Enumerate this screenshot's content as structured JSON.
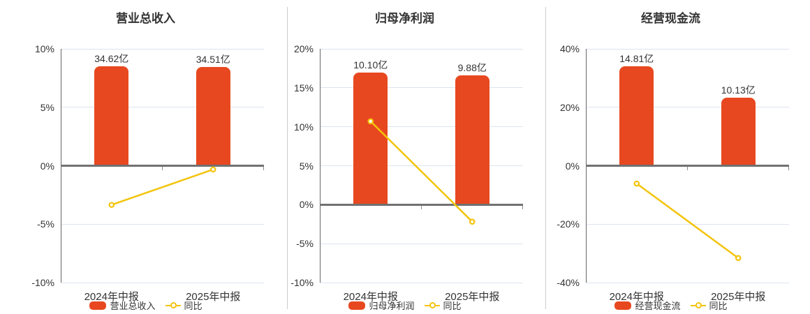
{
  "colors": {
    "bar": "#E8481F",
    "line": "#F3C40C",
    "zero_axis": "#717171",
    "gridline": "#DDE4F0",
    "y_axis": "#666666",
    "divider": "#CCCCCC",
    "text": "#333333"
  },
  "chart_data": [
    {
      "type": "bar",
      "title": "营业总收入",
      "categories": [
        "2024年中报",
        "2025年中报"
      ],
      "series": [
        {
          "name": "营业总收入",
          "type": "bar",
          "unit": "亿",
          "values": [
            34.62,
            34.51
          ],
          "labels": [
            "34.62亿",
            "34.51亿"
          ]
        },
        {
          "name": "同比",
          "type": "line",
          "unit": "%",
          "values": [
            -3.35,
            -0.32
          ]
        }
      ],
      "y_axis": {
        "unit": "%",
        "min": -10,
        "max": 10,
        "ticks": [
          10,
          5,
          0,
          -5,
          -10
        ],
        "tick_labels": [
          "10%",
          "5%",
          "0%",
          "-5%",
          "-10%"
        ]
      },
      "legend": [
        {
          "label": "营业总收入",
          "marker": "bar"
        },
        {
          "label": "同比",
          "marker": "line"
        }
      ],
      "grid": true,
      "legend_position": "bottom"
    },
    {
      "type": "bar",
      "title": "归母净利润",
      "categories": [
        "2024年中报",
        "2025年中报"
      ],
      "series": [
        {
          "name": "归母净利润",
          "type": "bar",
          "unit": "亿",
          "values": [
            10.1,
            9.88
          ],
          "labels": [
            "10.10亿",
            "9.88亿"
          ]
        },
        {
          "name": "同比",
          "type": "line",
          "unit": "%",
          "values": [
            10.7,
            -2.18
          ]
        }
      ],
      "y_axis": {
        "unit": "%",
        "min": -10,
        "max": 20,
        "ticks": [
          20,
          15,
          10,
          5,
          0,
          -5,
          -10
        ],
        "tick_labels": [
          "20%",
          "15%",
          "10%",
          "5%",
          "0%",
          "-5%",
          "-10%"
        ]
      },
      "legend": [
        {
          "label": "归母净利润",
          "marker": "bar"
        },
        {
          "label": "同比",
          "marker": "line"
        }
      ],
      "grid": true,
      "legend_position": "bottom"
    },
    {
      "type": "bar",
      "title": "经营现金流",
      "categories": [
        "2024年中报",
        "2025年中报"
      ],
      "series": [
        {
          "name": "经营现金流",
          "type": "bar",
          "unit": "亿",
          "values": [
            14.81,
            10.13
          ],
          "labels": [
            "14.81亿",
            "10.13亿"
          ]
        },
        {
          "name": "同比",
          "type": "line",
          "unit": "%",
          "values": [
            -6.1,
            -31.6
          ]
        }
      ],
      "y_axis": {
        "unit": "%",
        "min": -40,
        "max": 40,
        "ticks": [
          40,
          20,
          0,
          -20,
          -40
        ],
        "tick_labels": [
          "40%",
          "20%",
          "0%",
          "-20%",
          "-40%"
        ]
      },
      "legend": [
        {
          "label": "经营现金流",
          "marker": "bar"
        },
        {
          "label": "同比",
          "marker": "line"
        }
      ],
      "grid": true,
      "legend_position": "bottom"
    }
  ]
}
